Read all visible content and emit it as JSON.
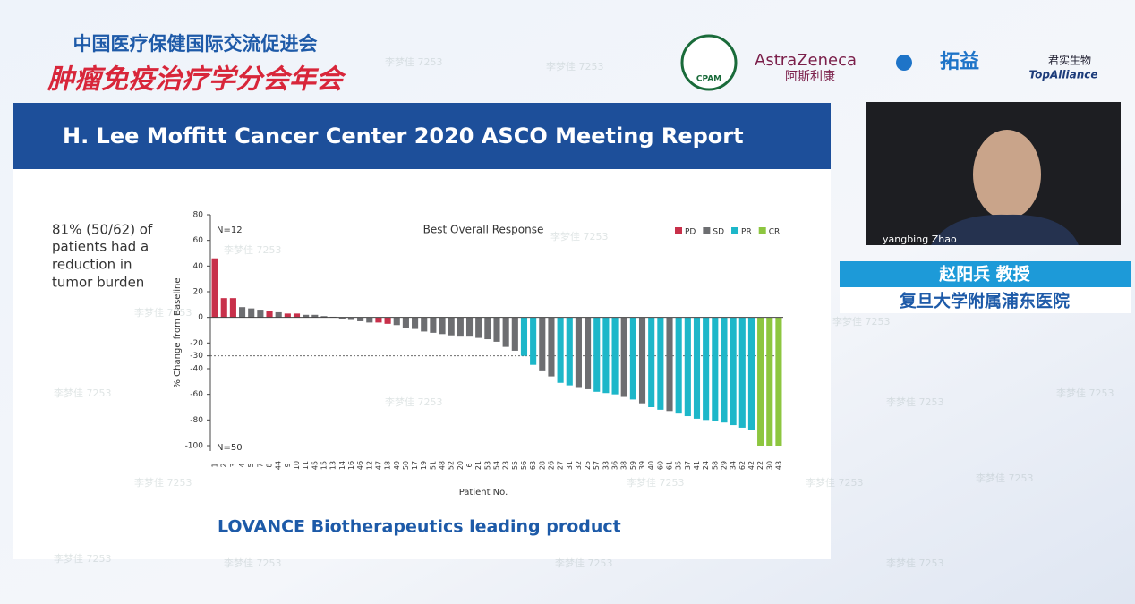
{
  "header": {
    "org": "中国医疗保健国际交流促进会",
    "event": "肿瘤免疫治疗学分会年会"
  },
  "logos": {
    "cpam": "CPAM",
    "astrazeneca": "AstraZeneca",
    "astrazeneca_cn": "阿斯利康",
    "tuoyi": "拓益",
    "junshi": "君实生物",
    "topalliance": "TopAlliance"
  },
  "watermark": "李梦佳 7253",
  "slide": {
    "title": "H. Lee Moffitt Cancer Center 2020 ASCO Meeting Report",
    "note": [
      "81% (50/62) of",
      "patients had a",
      "reduction in",
      "tumor burden"
    ],
    "footer": "LOVANCE Biotherapeutics leading product"
  },
  "video": {
    "participant": "yangbing Zhao"
  },
  "speaker": {
    "name": "赵阳兵 教授",
    "affiliation": "复旦大学附属浦东医院"
  },
  "chart_data": {
    "type": "bar",
    "title": "Best Overall Response",
    "xlabel": "Patient No.",
    "ylabel": "% Change from Baseline",
    "annotations": [
      "N=12",
      "N=50"
    ],
    "categories": [
      "1",
      "2",
      "3",
      "4",
      "5",
      "7",
      "8",
      "44",
      "9",
      "10",
      "11",
      "45",
      "15",
      "13",
      "14",
      "16",
      "46",
      "12",
      "47",
      "18",
      "49",
      "50",
      "17",
      "19",
      "51",
      "48",
      "52",
      "20",
      "6",
      "21",
      "53",
      "54",
      "23",
      "55",
      "56",
      "63",
      "28",
      "26",
      "27",
      "31",
      "32",
      "25",
      "57",
      "33",
      "36",
      "38",
      "59",
      "39",
      "40",
      "60",
      "61",
      "35",
      "37",
      "41",
      "24",
      "58",
      "29",
      "34",
      "62",
      "42",
      "22",
      "30",
      "43"
    ],
    "values": [
      46,
      15,
      15,
      8,
      7,
      6,
      5,
      4,
      3,
      3,
      2,
      2,
      1,
      0.5,
      -1,
      -2,
      -3,
      -4,
      -4,
      -5,
      -6,
      -8,
      -9,
      -11,
      -12,
      -13,
      -14,
      -15,
      -15,
      -16,
      -17,
      -19,
      -23,
      -26,
      -30,
      -37,
      -42,
      -46,
      -51,
      -53,
      -55,
      -56,
      -58,
      -59,
      -60,
      -62,
      -64,
      -67,
      -70,
      -72,
      -73,
      -75,
      -77,
      -79,
      -80,
      -81,
      -82,
      -84,
      -86,
      -88,
      -100,
      -100,
      -100
    ],
    "bar_colors": [
      "#c8304a",
      "#c8304a",
      "#c8304a",
      "#6d6e71",
      "#6d6e71",
      "#6d6e71",
      "#c8304a",
      "#6d6e71",
      "#c8304a",
      "#c8304a",
      "#6d6e71",
      "#6d6e71",
      "#6d6e71",
      "#6d6e71",
      "#6d6e71",
      "#6d6e71",
      "#6d6e71",
      "#6d6e71",
      "#c8304a",
      "#c8304a",
      "#6d6e71",
      "#6d6e71",
      "#6d6e71",
      "#6d6e71",
      "#6d6e71",
      "#6d6e71",
      "#6d6e71",
      "#6d6e71",
      "#6d6e71",
      "#6d6e71",
      "#6d6e71",
      "#6d6e71",
      "#6d6e71",
      "#6d6e71",
      "#1db7c9",
      "#1db7c9",
      "#6d6e71",
      "#6d6e71",
      "#1db7c9",
      "#1db7c9",
      "#6d6e71",
      "#6d6e71",
      "#1db7c9",
      "#1db7c9",
      "#1db7c9",
      "#6d6e71",
      "#1db7c9",
      "#6d6e71",
      "#1db7c9",
      "#1db7c9",
      "#6d6e71",
      "#1db7c9",
      "#1db7c9",
      "#1db7c9",
      "#1db7c9",
      "#1db7c9",
      "#1db7c9",
      "#1db7c9",
      "#1db7c9",
      "#1db7c9",
      "#8dc63f",
      "#8dc63f",
      "#8dc63f"
    ],
    "legend": [
      {
        "name": "PD",
        "color": "#c8304a"
      },
      {
        "name": "SD",
        "color": "#6d6e71"
      },
      {
        "name": "PR",
        "color": "#1db7c9"
      },
      {
        "name": "CR",
        "color": "#8dc63f"
      }
    ],
    "legend_position": "upper right",
    "ylim": [
      -100,
      80
    ],
    "yticks": [
      80,
      60,
      40,
      20,
      0,
      -20,
      -30,
      -40,
      -60,
      -80,
      -100
    ],
    "reference_line": -30
  }
}
